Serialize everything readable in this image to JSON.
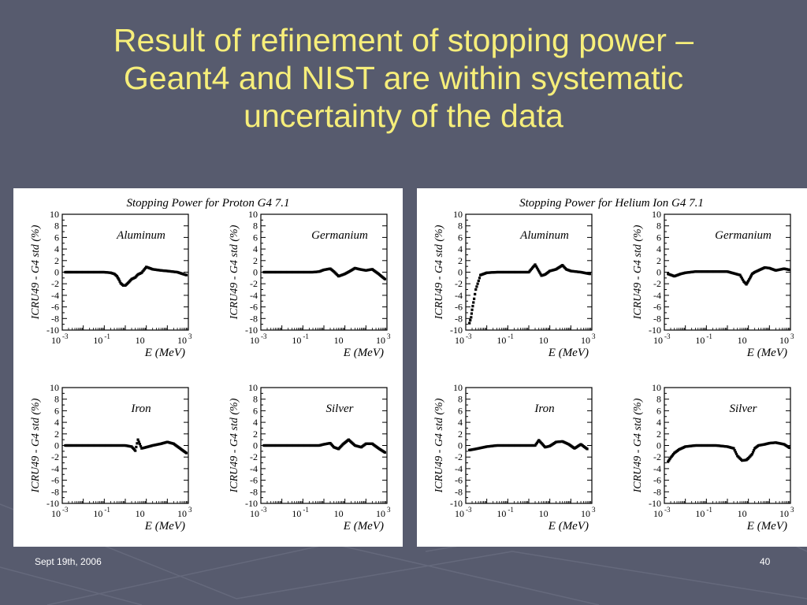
{
  "slide": {
    "title_lines": [
      "Result of refinement of stopping power –",
      "Geant4 and NIST are within systematic",
      "uncertainty of the data"
    ],
    "footer_date": "Sept 19th, 2006",
    "page_number": "40"
  },
  "colors": {
    "background": "#575b6e",
    "title": "#f6ee7a",
    "panel": "#ffffff"
  },
  "chart_data": [
    {
      "type": "scatter",
      "title": "Stopping Power for Proton G4 7.1",
      "axes": {
        "xlabel": "E (MeV)",
        "ylabel": "ICRU49 - G4 std (%)",
        "x_scale": "log",
        "xlim": [
          0.001,
          1000
        ],
        "ylim": [
          -10,
          10
        ],
        "yticks": [
          "10",
          "8",
          "6",
          "4",
          "2",
          "0",
          "-2",
          "-4",
          "-6",
          "-8",
          "-10"
        ],
        "xticks": [
          {
            "base": "10",
            "exp": "-3"
          },
          {
            "base": "10",
            "exp": "-1"
          },
          {
            "base": "10",
            "exp": ""
          },
          {
            "base": "10",
            "exp": "3"
          }
        ]
      },
      "subplots": [
        {
          "label": "Aluminum",
          "x": [
            0.0014,
            0.003,
            0.01,
            0.03,
            0.1,
            0.2,
            0.3,
            0.4,
            0.5,
            0.6,
            0.8,
            1,
            1.5,
            2,
            3,
            4,
            6,
            10,
            20,
            50,
            100,
            300,
            800
          ],
          "y": [
            0,
            0,
            0,
            0,
            0,
            -0.1,
            -0.3,
            -0.7,
            -1.3,
            -1.9,
            -2.3,
            -2.3,
            -1.7,
            -1.2,
            -0.9,
            -0.4,
            -0.1,
            0.9,
            0.5,
            0.3,
            0.2,
            0,
            -0.5
          ]
        },
        {
          "label": "Germanium",
          "x": [
            0.0014,
            0.003,
            0.01,
            0.03,
            0.1,
            0.3,
            0.6,
            1,
            2,
            3,
            5,
            10,
            20,
            30,
            50,
            100,
            200,
            400,
            800
          ],
          "y": [
            0,
            0,
            0,
            0,
            0,
            0,
            0.1,
            0.4,
            0.6,
            0.1,
            -0.7,
            -0.3,
            0.3,
            0.7,
            0.5,
            0.3,
            0.5,
            -0.3,
            -1.2
          ]
        },
        {
          "label": "Iron",
          "x": [
            0.0014,
            0.003,
            0.01,
            0.03,
            0.1,
            0.3,
            1,
            2,
            3,
            4,
            6,
            10,
            20,
            50,
            100,
            200,
            400,
            800
          ],
          "y": [
            0,
            0,
            0,
            0,
            0,
            0,
            0,
            -0.2,
            -0.9,
            1,
            -0.5,
            -0.3,
            0,
            0.3,
            0.6,
            0.3,
            -0.5,
            -1.3
          ]
        },
        {
          "label": "Silver",
          "x": [
            0.0014,
            0.003,
            0.01,
            0.03,
            0.1,
            0.3,
            0.6,
            1,
            2,
            3,
            5,
            8,
            15,
            30,
            60,
            100,
            200,
            400,
            800
          ],
          "y": [
            0,
            0,
            0,
            0,
            0,
            0,
            0,
            0.2,
            0.4,
            -0.3,
            -0.6,
            0.2,
            1,
            0,
            -0.3,
            0.3,
            0.3,
            -0.5,
            -1.2
          ]
        }
      ]
    },
    {
      "type": "scatter",
      "title": "Stopping Power for Helium Ion G4 7.1",
      "axes": {
        "xlabel": "E (MeV)",
        "ylabel": "ICRU49 - G4 std (%)",
        "x_scale": "log",
        "xlim": [
          0.001,
          1000
        ],
        "ylim": [
          -10,
          10
        ],
        "yticks": [
          "10",
          "8",
          "6",
          "4",
          "2",
          "0",
          "-2",
          "-4",
          "-6",
          "-8",
          "-10"
        ],
        "xticks": [
          {
            "base": "10",
            "exp": "-3"
          },
          {
            "base": "10",
            "exp": "-1"
          },
          {
            "base": "10",
            "exp": ""
          },
          {
            "base": "10",
            "exp": "3"
          }
        ]
      },
      "subplots": [
        {
          "label": "Aluminum",
          "x": [
            0.0015,
            0.0018,
            0.002,
            0.0025,
            0.003,
            0.005,
            0.01,
            0.03,
            0.1,
            0.3,
            1,
            2,
            3,
            4,
            6,
            10,
            20,
            40,
            60,
            100,
            300,
            800
          ],
          "y": [
            -8.8,
            -7.8,
            -6.5,
            -4.6,
            -3,
            -0.5,
            -0.1,
            0,
            0,
            0,
            0,
            1.3,
            0.2,
            -0.6,
            -0.4,
            0.2,
            0.5,
            1.2,
            0.5,
            0.2,
            0,
            -0.3
          ]
        },
        {
          "label": "Germanium",
          "x": [
            0.0015,
            0.003,
            0.006,
            0.01,
            0.03,
            0.1,
            0.3,
            1,
            2,
            4,
            6,
            8,
            10,
            12,
            15,
            20,
            30,
            60,
            100,
            200,
            500,
            900
          ],
          "y": [
            -0.3,
            -0.7,
            -0.3,
            -0.1,
            0.1,
            0.1,
            0.1,
            0.1,
            -0.2,
            -0.5,
            -1.6,
            -2.1,
            -1.5,
            -1,
            -0.3,
            0,
            0.3,
            0.8,
            0.7,
            0.3,
            0.6,
            0.4
          ]
        },
        {
          "label": "Iron",
          "x": [
            0.0015,
            0.003,
            0.01,
            0.03,
            0.1,
            0.3,
            1,
            2,
            3,
            4,
            6,
            10,
            20,
            40,
            80,
            150,
            300,
            600
          ],
          "y": [
            -0.8,
            -0.6,
            -0.2,
            0,
            0,
            0,
            0,
            0,
            0.9,
            0.4,
            -0.3,
            -0.1,
            0.6,
            0.7,
            0.2,
            -0.5,
            0.2,
            -0.6
          ]
        },
        {
          "label": "Silver",
          "x": [
            0.0015,
            0.002,
            0.003,
            0.005,
            0.01,
            0.03,
            0.1,
            0.3,
            1,
            2,
            3,
            5,
            8,
            10,
            15,
            20,
            30,
            60,
            100,
            200,
            500,
            900
          ],
          "y": [
            -2.8,
            -2.1,
            -1.3,
            -0.7,
            -0.2,
            0,
            0,
            0,
            -0.2,
            -0.5,
            -1.8,
            -2.6,
            -2.5,
            -2.2,
            -1.5,
            -0.5,
            0,
            0.2,
            0.4,
            0.5,
            0.2,
            -0.4
          ]
        }
      ]
    }
  ]
}
